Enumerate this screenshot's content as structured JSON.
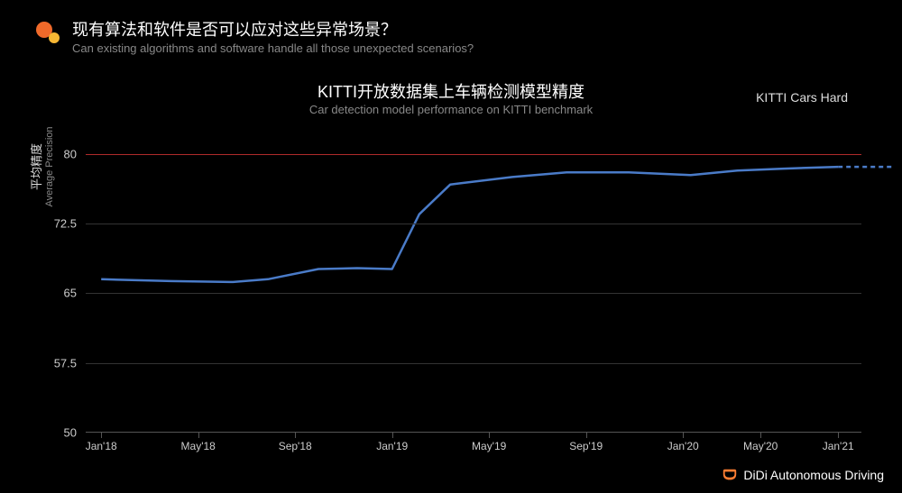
{
  "header": {
    "title_cn": "现有算法和软件是否可以应对这些异常场景？",
    "title_en": "Can existing algorithms and software handle all those unexpected scenarios?",
    "logo_colors": {
      "orange": "#f06a2a",
      "yellow": "#f7b733"
    }
  },
  "chart": {
    "type": "line",
    "title_cn": "KITTI开放数据集上车辆检测模型精度",
    "title_en": "Car detection model performance on KITTI benchmark",
    "legend_label": "KITTI Cars Hard",
    "y_axis": {
      "label_cn": "平均精度",
      "label_en": "Average Precision",
      "min": 50,
      "max": 82,
      "ticks": [
        50,
        57.5,
        65,
        72.5,
        80
      ],
      "highlight_tick": 80,
      "highlight_color": "#b02a2a",
      "grid_color": "#333333",
      "tick_fontsize": 13
    },
    "x_axis": {
      "labels": [
        "Jan'18",
        "May'18",
        "Sep'18",
        "Jan'19",
        "May'19",
        "Sep'19",
        "Jan'20",
        "May'20",
        "Jan'21"
      ],
      "positions": [
        0.02,
        0.145,
        0.27,
        0.395,
        0.52,
        0.645,
        0.77,
        0.87,
        0.97
      ]
    },
    "series": {
      "color": "#4a7bc8",
      "width": 2.5,
      "points": [
        {
          "x": 0.02,
          "y": 66.5
        },
        {
          "x": 0.11,
          "y": 66.3
        },
        {
          "x": 0.19,
          "y": 66.2
        },
        {
          "x": 0.235,
          "y": 66.5
        },
        {
          "x": 0.3,
          "y": 67.6
        },
        {
          "x": 0.35,
          "y": 67.7
        },
        {
          "x": 0.395,
          "y": 67.6
        },
        {
          "x": 0.43,
          "y": 73.5
        },
        {
          "x": 0.47,
          "y": 76.7
        },
        {
          "x": 0.55,
          "y": 77.5
        },
        {
          "x": 0.62,
          "y": 78.0
        },
        {
          "x": 0.7,
          "y": 78.0
        },
        {
          "x": 0.78,
          "y": 77.7
        },
        {
          "x": 0.84,
          "y": 78.2
        },
        {
          "x": 0.9,
          "y": 78.4
        },
        {
          "x": 0.97,
          "y": 78.6
        }
      ],
      "dashed_extension": [
        {
          "x": 0.97,
          "y": 78.6
        },
        {
          "x": 1.04,
          "y": 78.6
        }
      ]
    },
    "background_color": "#000000"
  },
  "footer": {
    "brand": "DiDi Autonomous Driving",
    "brand_color": "#ff7e33"
  }
}
